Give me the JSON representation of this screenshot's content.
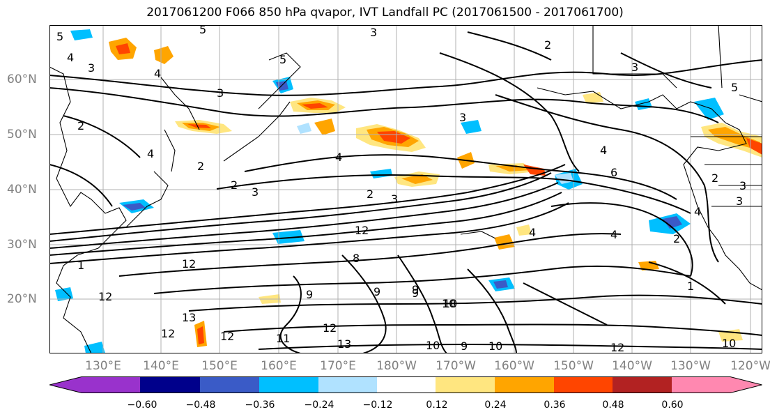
{
  "title": "2017061200 F066 850 hPa qvapor, IVT Landfall PC (2017061500 - 2017061700)",
  "lat_labels": [
    "60°N",
    "50°N",
    "40°N",
    "30°N",
    "20°N"
  ],
  "lon_labels": [
    "130°E",
    "140°E",
    "150°E",
    "160°E",
    "170°E",
    "180°W",
    "170°W",
    "160°W",
    "150°W",
    "140°W",
    "130°W",
    "120°W"
  ],
  "colorbar": {
    "colors": [
      "#9932cc",
      "#00008b",
      "#3a5bc7",
      "#00bfff",
      "#b0e2ff",
      "#ffffff",
      "#ffe680",
      "#ffa500",
      "#ff4500",
      "#b22222",
      "#ff88b0"
    ],
    "ticks": [
      "−0.60",
      "−0.48",
      "−0.36",
      "−0.24",
      "−0.12",
      "0.12",
      "0.24",
      "0.36",
      "0.48",
      "0.60"
    ]
  },
  "contour_labels": [
    "5",
    "4",
    "3",
    "2",
    "2",
    "3",
    "1",
    "4",
    "3",
    "5",
    "3",
    "2",
    "5",
    "4",
    "3",
    "4",
    "6",
    "2",
    "3",
    "3",
    "2",
    "4",
    "12",
    "12",
    "12",
    "12",
    "13",
    "12",
    "11",
    "12",
    "13",
    "9",
    "9",
    "10",
    "9",
    "8",
    "10",
    "9",
    "10",
    "9",
    "10",
    "12",
    "4",
    "4",
    "2",
    "1",
    "5",
    "4",
    "2",
    "3",
    "10",
    "3"
  ]
}
